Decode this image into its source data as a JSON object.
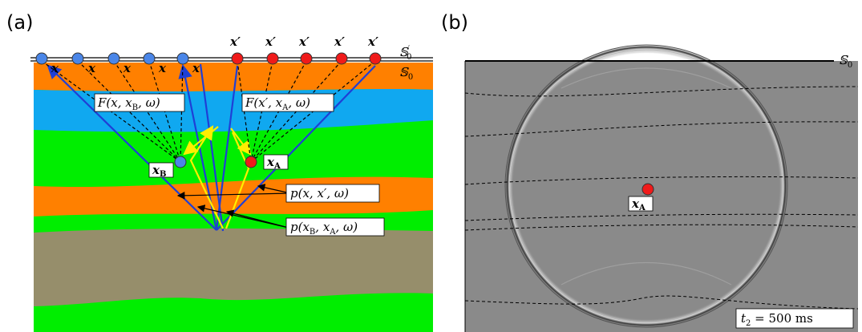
{
  "panel_a": {
    "label": "(a)",
    "x_labels": [
      "x",
      "x",
      "x",
      "x",
      "x"
    ],
    "x_prime_labels": [
      "x′",
      "x′",
      "x′",
      "x′",
      "x′"
    ],
    "surface_prime": [
      "𝕊",
      "′",
      "0"
    ],
    "surface": [
      "𝕊",
      "0"
    ],
    "green_a": [
      "F(x, x",
      "B",
      ", ω)"
    ],
    "green_b": [
      "F(x′, x",
      "A",
      ", ω)"
    ],
    "point_b": [
      "x",
      "B"
    ],
    "point_a": [
      "x",
      "A"
    ],
    "p_label_1": "p(x, x′, ω)",
    "p_label_2": [
      "p(x",
      "B",
      ", x",
      "A",
      ", ω)"
    ]
  },
  "panel_b": {
    "label": "(b)",
    "surface": [
      "𝕊",
      "0"
    ],
    "point_a": [
      "x",
      "A"
    ],
    "time": [
      "t",
      "2",
      " = 500 ms"
    ]
  }
}
